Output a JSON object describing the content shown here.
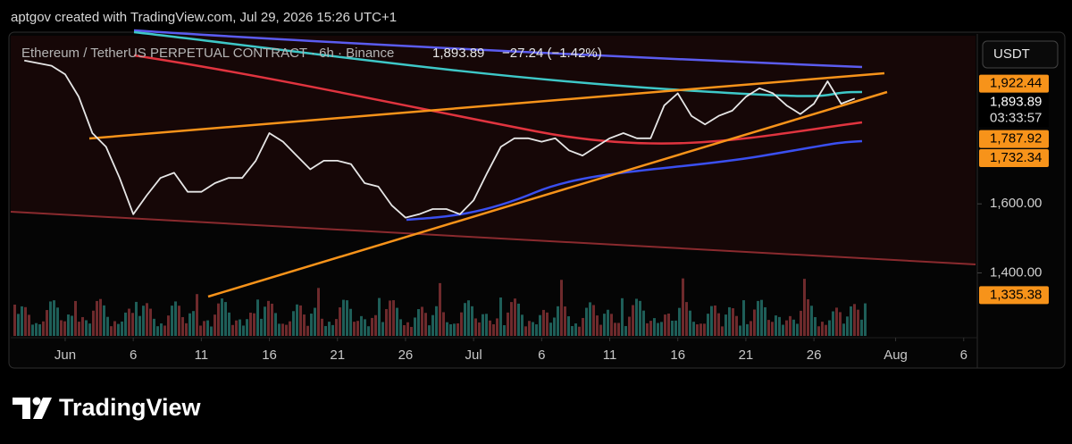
{
  "header": {
    "caption": "aptgov created with TradingView.com, Jul 29, 2026 15:26 UTC+1"
  },
  "legend": {
    "symbol": "Ethereum / TetherUS PERPETUAL CONTRACT · 6h · Binance",
    "last": "1,893.89",
    "change": "−27.24 (−1.42%)"
  },
  "chart_data": {
    "type": "line",
    "color": "#e6e6e6",
    "currency": "USDT",
    "x": [
      "2026-05-29",
      "2026-05-31",
      "2026-06-01",
      "2026-06-02",
      "2026-06-03",
      "2026-06-04",
      "2026-06-05",
      "2026-06-06",
      "2026-06-07",
      "2026-06-08",
      "2026-06-09",
      "2026-06-10",
      "2026-06-11",
      "2026-06-12",
      "2026-06-13",
      "2026-06-14",
      "2026-06-15",
      "2026-06-16",
      "2026-06-17",
      "2026-06-18",
      "2026-06-19",
      "2026-06-20",
      "2026-06-21",
      "2026-06-22",
      "2026-06-23",
      "2026-06-24",
      "2026-06-25",
      "2026-06-26",
      "2026-06-27",
      "2026-06-28",
      "2026-06-29",
      "2026-06-30",
      "2026-07-01",
      "2026-07-02",
      "2026-07-03",
      "2026-07-04",
      "2026-07-05",
      "2026-07-06",
      "2026-07-07",
      "2026-07-08",
      "2026-07-09",
      "2026-07-10",
      "2026-07-11",
      "2026-07-12",
      "2026-07-13",
      "2026-07-14",
      "2026-07-15",
      "2026-07-16",
      "2026-07-17",
      "2026-07-18",
      "2026-07-19",
      "2026-07-20",
      "2026-07-21",
      "2026-07-22",
      "2026-07-23",
      "2026-07-24",
      "2026-07-25",
      "2026-07-26",
      "2026-07-27",
      "2026-07-28",
      "2026-07-29"
    ],
    "values": [
      2015,
      2000,
      1975,
      1910,
      1805,
      1765,
      1675,
      1570,
      1625,
      1675,
      1690,
      1635,
      1635,
      1660,
      1675,
      1675,
      1725,
      1805,
      1780,
      1740,
      1700,
      1725,
      1725,
      1715,
      1660,
      1650,
      1595,
      1560,
      1570,
      1585,
      1585,
      1570,
      1610,
      1690,
      1765,
      1790,
      1790,
      1780,
      1790,
      1755,
      1740,
      1765,
      1790,
      1805,
      1790,
      1790,
      1885,
      1920,
      1855,
      1830,
      1855,
      1870,
      1910,
      1935,
      1920,
      1885,
      1860,
      1890,
      1955,
      1890,
      1905
    ],
    "xlim": [
      "2026-05-28",
      "2026-08-07"
    ],
    "xticks": [
      {
        "value": "2026-06-01",
        "label": "Jun"
      },
      {
        "value": "2026-06-06",
        "label": "6"
      },
      {
        "value": "2026-06-11",
        "label": "11"
      },
      {
        "value": "2026-06-16",
        "label": "16"
      },
      {
        "value": "2026-06-21",
        "label": "21"
      },
      {
        "value": "2026-06-26",
        "label": "26"
      },
      {
        "value": "2026-07-01",
        "label": "Jul"
      },
      {
        "value": "2026-07-06",
        "label": "6"
      },
      {
        "value": "2026-07-11",
        "label": "11"
      },
      {
        "value": "2026-07-16",
        "label": "16"
      },
      {
        "value": "2026-07-21",
        "label": "21"
      },
      {
        "value": "2026-07-26",
        "label": "26"
      },
      {
        "value": "2026-08-01",
        "label": "Aug"
      },
      {
        "value": "2026-08-06",
        "label": "6"
      }
    ],
    "ylim": [
      1220,
      2100
    ],
    "yticks": [
      {
        "value": 1600,
        "label": "1,600.00"
      },
      {
        "value": 1400,
        "label": "1,400.00"
      }
    ],
    "price_markers": [
      {
        "value": 1922.44,
        "label": "1,922.44",
        "color": "#f7931a"
      },
      {
        "value": 1893.89,
        "label": "1,893.89",
        "countdown": "03:33:57"
      },
      {
        "value": 1787.92,
        "label": "1,787.92",
        "color": "#f7931a"
      },
      {
        "value": 1732.34,
        "label": "1,732.34",
        "color": "#f7931a"
      },
      {
        "value": 1335.38,
        "label": "1,335.38",
        "color": "#f7931a"
      }
    ]
  },
  "footer": {
    "brand": "TradingView"
  }
}
